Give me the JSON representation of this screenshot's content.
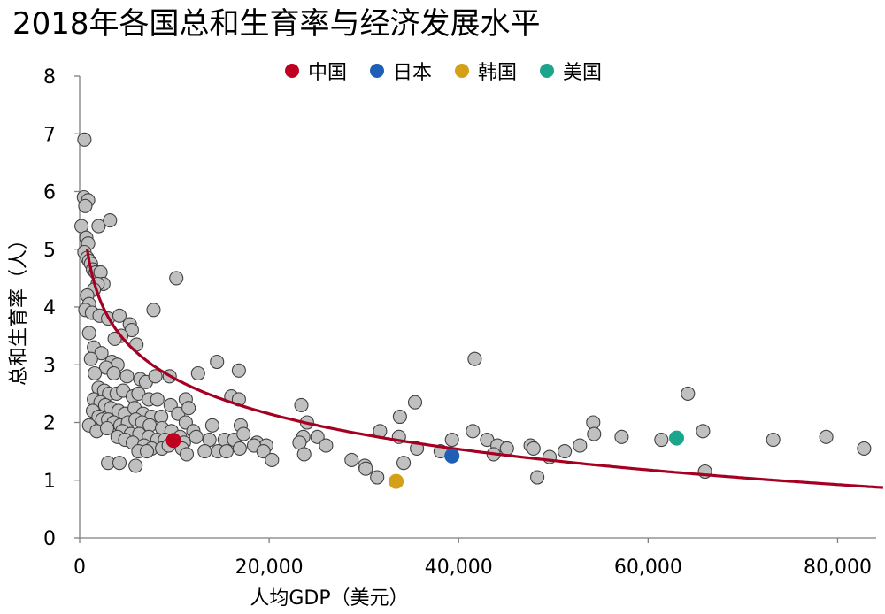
{
  "title": "2018年各国总和生育率与经济发展水平",
  "chart_data": {
    "type": "scatter",
    "title": "2018年各国总和生育率与经济发展水平",
    "xlabel": "人均GDP（美元）",
    "ylabel": "总和生育率（人）",
    "xlim": [
      0,
      85000
    ],
    "ylim": [
      0,
      8
    ],
    "x_ticks": [
      0,
      20000,
      40000,
      60000,
      80000
    ],
    "x_tick_labels": [
      "0",
      "20,000",
      "40,000",
      "60,000",
      "80,000"
    ],
    "y_ticks": [
      0,
      1,
      2,
      3,
      4,
      5,
      6,
      7,
      8
    ],
    "y_tick_labels": [
      "0",
      "1",
      "2",
      "3",
      "4",
      "5",
      "6",
      "7",
      "8"
    ],
    "grid": false,
    "legend_position": "top",
    "colors": {
      "other": "#c0c0c0",
      "other_edge": "#404040",
      "trend": "#a50021",
      "china": "#c00020",
      "japan": "#1f5fb5",
      "korea": "#d4a017",
      "usa": "#1aa58c"
    },
    "highlighted": [
      {
        "name": "中国",
        "x": 9900,
        "y": 1.69,
        "color": "#c00020"
      },
      {
        "name": "日本",
        "x": 39300,
        "y": 1.42,
        "color": "#1f5fb5"
      },
      {
        "name": "韩国",
        "x": 33400,
        "y": 0.98,
        "color": "#d4a017"
      },
      {
        "name": "美国",
        "x": 63000,
        "y": 1.73,
        "color": "#1aa58c"
      }
    ],
    "trendline": {
      "type": "logarithmic",
      "from": 0.8,
      "to_x": 85000,
      "to_y": 0.87
    },
    "points": [
      [
        500,
        6.9
      ],
      [
        450,
        5.9
      ],
      [
        900,
        5.85
      ],
      [
        600,
        5.75
      ],
      [
        200,
        5.4
      ],
      [
        2000,
        5.4
      ],
      [
        3200,
        5.5
      ],
      [
        700,
        5.2
      ],
      [
        900,
        5.1
      ],
      [
        500,
        4.95
      ],
      [
        800,
        4.85
      ],
      [
        1000,
        4.8
      ],
      [
        1200,
        4.75
      ],
      [
        1400,
        4.65
      ],
      [
        1700,
        4.6
      ],
      [
        2200,
        4.6
      ],
      [
        2500,
        4.4
      ],
      [
        1900,
        4.4
      ],
      [
        1500,
        4.3
      ],
      [
        800,
        4.2
      ],
      [
        1000,
        4.05
      ],
      [
        600,
        3.95
      ],
      [
        1300,
        3.9
      ],
      [
        2100,
        3.85
      ],
      [
        3000,
        3.8
      ],
      [
        4200,
        3.85
      ],
      [
        5300,
        3.7
      ],
      [
        5500,
        3.6
      ],
      [
        4400,
        3.5
      ],
      [
        3700,
        3.45
      ],
      [
        6000,
        3.35
      ],
      [
        7800,
        3.95
      ],
      [
        10200,
        4.5
      ],
      [
        1000,
        3.55
      ],
      [
        1500,
        3.3
      ],
      [
        2300,
        3.2
      ],
      [
        1200,
        3.1
      ],
      [
        3400,
        3.05
      ],
      [
        4000,
        3.0
      ],
      [
        2800,
        2.95
      ],
      [
        1600,
        2.85
      ],
      [
        3600,
        2.85
      ],
      [
        5000,
        2.8
      ],
      [
        6400,
        2.75
      ],
      [
        7000,
        2.7
      ],
      [
        8000,
        2.8
      ],
      [
        9500,
        2.8
      ],
      [
        12500,
        2.85
      ],
      [
        14500,
        3.05
      ],
      [
        16800,
        2.9
      ],
      [
        2000,
        2.6
      ],
      [
        2600,
        2.55
      ],
      [
        3100,
        2.5
      ],
      [
        3900,
        2.5
      ],
      [
        4600,
        2.55
      ],
      [
        5600,
        2.45
      ],
      [
        6200,
        2.5
      ],
      [
        7300,
        2.4
      ],
      [
        8200,
        2.4
      ],
      [
        9600,
        2.3
      ],
      [
        11200,
        2.4
      ],
      [
        16000,
        2.45
      ],
      [
        16800,
        2.4
      ],
      [
        1500,
        2.4
      ],
      [
        2200,
        2.35
      ],
      [
        2700,
        2.3
      ],
      [
        3300,
        2.25
      ],
      [
        4100,
        2.2
      ],
      [
        4800,
        2.15
      ],
      [
        5800,
        2.25
      ],
      [
        6700,
        2.15
      ],
      [
        7600,
        2.1
      ],
      [
        8600,
        2.1
      ],
      [
        10400,
        2.15
      ],
      [
        11500,
        2.25
      ],
      [
        1400,
        2.2
      ],
      [
        2000,
        2.1
      ],
      [
        2400,
        2.05
      ],
      [
        3000,
        2.05
      ],
      [
        3600,
        2.0
      ],
      [
        4300,
        1.95
      ],
      [
        5100,
        2.0
      ],
      [
        5900,
        2.05
      ],
      [
        6600,
        2.0
      ],
      [
        7400,
        1.95
      ],
      [
        8700,
        1.9
      ],
      [
        9700,
        1.85
      ],
      [
        11200,
        2.0
      ],
      [
        12000,
        1.85
      ],
      [
        14000,
        1.95
      ],
      [
        17000,
        1.95
      ],
      [
        1000,
        1.95
      ],
      [
        1800,
        1.85
      ],
      [
        2900,
        1.9
      ],
      [
        4500,
        1.85
      ],
      [
        5400,
        1.8
      ],
      [
        6300,
        1.8
      ],
      [
        7300,
        1.75
      ],
      [
        8200,
        1.7
      ],
      [
        9000,
        1.7
      ],
      [
        10600,
        1.75
      ],
      [
        11000,
        1.65
      ],
      [
        12300,
        1.75
      ],
      [
        13700,
        1.7
      ],
      [
        15300,
        1.7
      ],
      [
        16300,
        1.7
      ],
      [
        17300,
        1.8
      ],
      [
        18700,
        1.65
      ],
      [
        19700,
        1.6
      ],
      [
        4000,
        1.75
      ],
      [
        4800,
        1.7
      ],
      [
        5600,
        1.65
      ],
      [
        6800,
        1.6
      ],
      [
        7600,
        1.55
      ],
      [
        8700,
        1.55
      ],
      [
        9400,
        1.6
      ],
      [
        10800,
        1.55
      ],
      [
        11300,
        1.45
      ],
      [
        13200,
        1.5
      ],
      [
        14600,
        1.5
      ],
      [
        15500,
        1.5
      ],
      [
        16900,
        1.55
      ],
      [
        18400,
        1.6
      ],
      [
        19400,
        1.5
      ],
      [
        20300,
        1.35
      ],
      [
        6200,
        1.5
      ],
      [
        7100,
        1.5
      ],
      [
        3000,
        1.3
      ],
      [
        4200,
        1.3
      ],
      [
        5900,
        1.25
      ],
      [
        23400,
        2.3
      ],
      [
        24000,
        2.0
      ],
      [
        23600,
        1.75
      ],
      [
        23200,
        1.65
      ],
      [
        25100,
        1.75
      ],
      [
        26000,
        1.6
      ],
      [
        23700,
        1.45
      ],
      [
        28700,
        1.35
      ],
      [
        30100,
        1.25
      ],
      [
        30200,
        1.2
      ],
      [
        31400,
        1.05
      ],
      [
        31700,
        1.85
      ],
      [
        33700,
        1.75
      ],
      [
        33800,
        2.1
      ],
      [
        35400,
        2.35
      ],
      [
        35600,
        1.55
      ],
      [
        34200,
        1.3
      ],
      [
        38100,
        1.5
      ],
      [
        39300,
        1.7
      ],
      [
        41500,
        1.85
      ],
      [
        41700,
        3.1
      ],
      [
        43000,
        1.7
      ],
      [
        44100,
        1.6
      ],
      [
        43700,
        1.45
      ],
      [
        45100,
        1.55
      ],
      [
        47600,
        1.6
      ],
      [
        47900,
        1.55
      ],
      [
        48300,
        1.05
      ],
      [
        49600,
        1.4
      ],
      [
        51200,
        1.5
      ],
      [
        52800,
        1.6
      ],
      [
        54200,
        2.0
      ],
      [
        54300,
        1.8
      ],
      [
        57200,
        1.75
      ],
      [
        61400,
        1.7
      ],
      [
        64200,
        2.5
      ],
      [
        65800,
        1.85
      ],
      [
        66000,
        1.15
      ],
      [
        73200,
        1.7
      ],
      [
        78800,
        1.75
      ],
      [
        82800,
        1.55
      ]
    ]
  }
}
